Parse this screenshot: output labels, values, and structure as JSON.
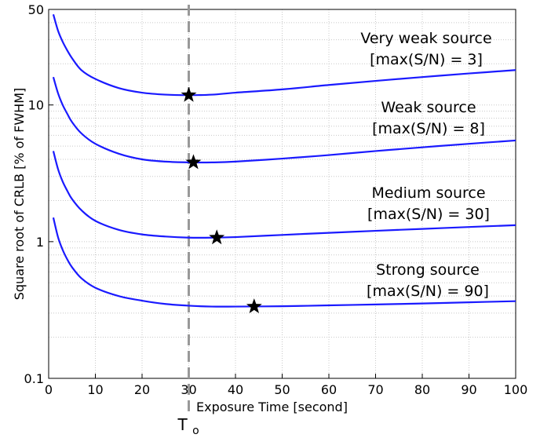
{
  "chart_data": {
    "type": "line",
    "title": "",
    "xlabel": "Exposure Time [second]",
    "ylabel": "Square root of CRLB [% of FWHM]",
    "xlim": [
      0,
      100
    ],
    "ylim": [
      0.1,
      50
    ],
    "yscale": "log",
    "grid": true,
    "x_ticks": [
      0,
      10,
      20,
      30,
      40,
      50,
      60,
      70,
      80,
      90,
      100
    ],
    "y_ticks": [
      0.1,
      1,
      10,
      50
    ],
    "x_tick_labels": [
      "0",
      "10",
      "20",
      "30",
      "40",
      "50",
      "60",
      "70",
      "80",
      "90",
      "100"
    ],
    "y_tick_labels": [
      "0.1",
      "1",
      "10",
      "50"
    ],
    "line_color": "#1a1aff",
    "series": [
      {
        "annotation": [
          "Very weak source",
          "[max(S/N) = 3]"
        ],
        "x": [
          1,
          2,
          3,
          4,
          5,
          7,
          10,
          15,
          20,
          25,
          30,
          35,
          40,
          50,
          60,
          70,
          80,
          90,
          100
        ],
        "y": [
          46,
          35,
          29,
          25,
          22,
          18,
          15.5,
          13.3,
          12.3,
          11.9,
          11.8,
          11.9,
          12.3,
          13.0,
          14.0,
          15.0,
          16.0,
          17.0,
          18.0
        ],
        "optimum": {
          "x": 30,
          "y": 11.8
        }
      },
      {
        "annotation": [
          "Weak source",
          "[max(S/N) = 8]"
        ],
        "x": [
          1,
          2,
          3,
          4,
          5,
          7,
          10,
          15,
          20,
          25,
          30,
          35,
          40,
          50,
          60,
          70,
          80,
          90,
          100
        ],
        "y": [
          16,
          12.2,
          10,
          8.6,
          7.5,
          6.2,
          5.2,
          4.4,
          4.0,
          3.85,
          3.8,
          3.8,
          3.85,
          4.05,
          4.3,
          4.6,
          4.9,
          5.2,
          5.5
        ],
        "optimum": {
          "x": 31,
          "y": 3.8
        }
      },
      {
        "annotation": [
          "Medium source",
          "[max(S/N) = 30]"
        ],
        "x": [
          1,
          2,
          3,
          4,
          5,
          7,
          10,
          15,
          20,
          25,
          30,
          35,
          40,
          50,
          60,
          70,
          80,
          90,
          100
        ],
        "y": [
          4.6,
          3.4,
          2.75,
          2.35,
          2.05,
          1.7,
          1.42,
          1.22,
          1.13,
          1.09,
          1.07,
          1.07,
          1.08,
          1.12,
          1.16,
          1.2,
          1.24,
          1.28,
          1.32
        ],
        "optimum": {
          "x": 36,
          "y": 1.07
        }
      },
      {
        "annotation": [
          "Strong source",
          "[max(S/N) = 90]"
        ],
        "x": [
          1,
          2,
          3,
          4,
          5,
          7,
          10,
          15,
          20,
          25,
          30,
          35,
          40,
          50,
          60,
          70,
          80,
          90,
          100
        ],
        "y": [
          1.5,
          1.08,
          0.87,
          0.74,
          0.65,
          0.54,
          0.46,
          0.4,
          0.37,
          0.35,
          0.34,
          0.335,
          0.335,
          0.337,
          0.342,
          0.347,
          0.353,
          0.36,
          0.367
        ],
        "optimum": {
          "x": 44,
          "y": 0.335
        }
      }
    ],
    "vline": {
      "x": 30,
      "label": "T",
      "subscript": "o",
      "style": "dashed",
      "color": "#999999"
    }
  }
}
